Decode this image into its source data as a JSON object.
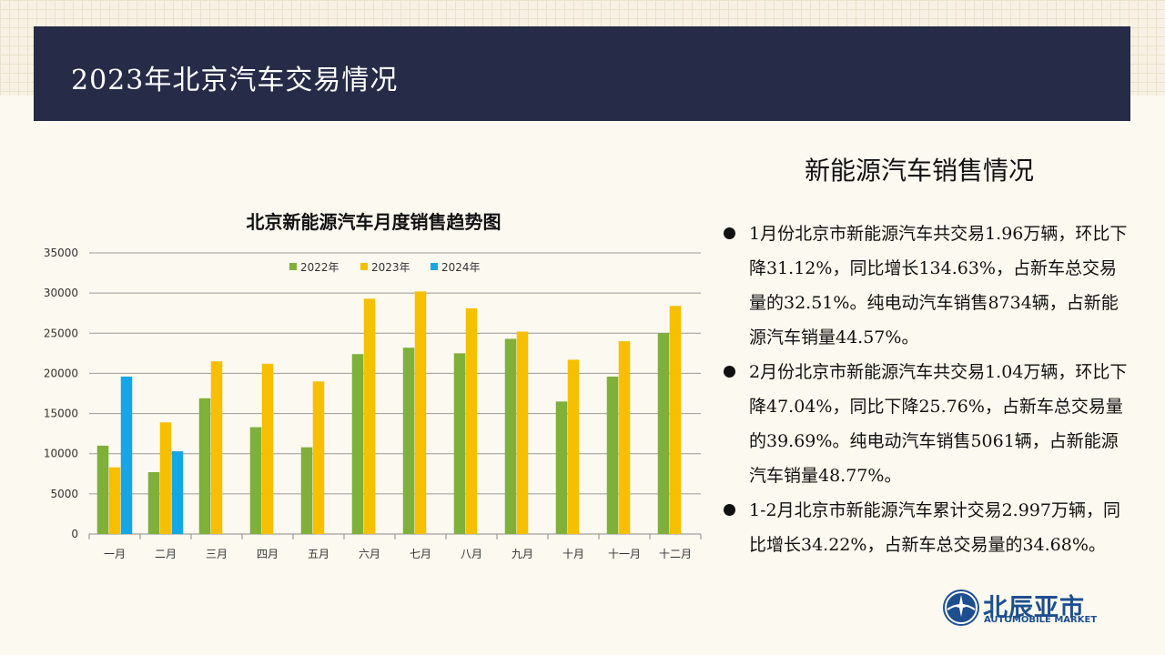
{
  "header": {
    "title": "2023年北京汽车交易情况"
  },
  "panel": {
    "title": "新能源汽车销售情况",
    "bullets": [
      "1月份北京市新能源汽车共交易1.96万辆，环比下降31.12%，同比增长134.63%，占新车总交易量的32.51%。纯电动汽车销售8734辆，占新能源汽车销量44.57%。",
      "2月份北京市新能源汽车共交易1.04万辆，环比下降47.04%，同比下降25.76%，占新车总交易量的39.69%。纯电动汽车销售5061辆，占新能源汽车销量48.77%。",
      "1-2月北京市新能源汽车累计交易2.997万辆，同比增长34.22%，占新车总交易量的34.68%。"
    ]
  },
  "logo": {
    "name": "北辰亚市",
    "subtitle": "AUTOMOBILE MARKET"
  },
  "chart_data": {
    "type": "bar",
    "title": "北京新能源汽车月度销售趋势图",
    "categories": [
      "一月",
      "二月",
      "三月",
      "四月",
      "五月",
      "六月",
      "七月",
      "八月",
      "九月",
      "十月",
      "十一月",
      "十二月"
    ],
    "series": [
      {
        "name": "2022年",
        "color": "#7fb03a",
        "values": [
          11000,
          7700,
          16900,
          13300,
          10800,
          22400,
          23200,
          22500,
          24300,
          16500,
          19600,
          25000
        ]
      },
      {
        "name": "2023年",
        "color": "#f6c000",
        "values": [
          8300,
          13900,
          21500,
          21200,
          19000,
          29300,
          30200,
          28100,
          25200,
          21700,
          24000,
          28400
        ]
      },
      {
        "name": "2024年",
        "color": "#14a7e8",
        "values": [
          19600,
          10300,
          null,
          null,
          null,
          null,
          null,
          null,
          null,
          null,
          null,
          null
        ]
      }
    ],
    "ylim": [
      0,
      35000
    ],
    "yticks": [
      0,
      5000,
      10000,
      15000,
      20000,
      25000,
      30000,
      35000
    ],
    "grid": true,
    "legend": "top-center"
  }
}
